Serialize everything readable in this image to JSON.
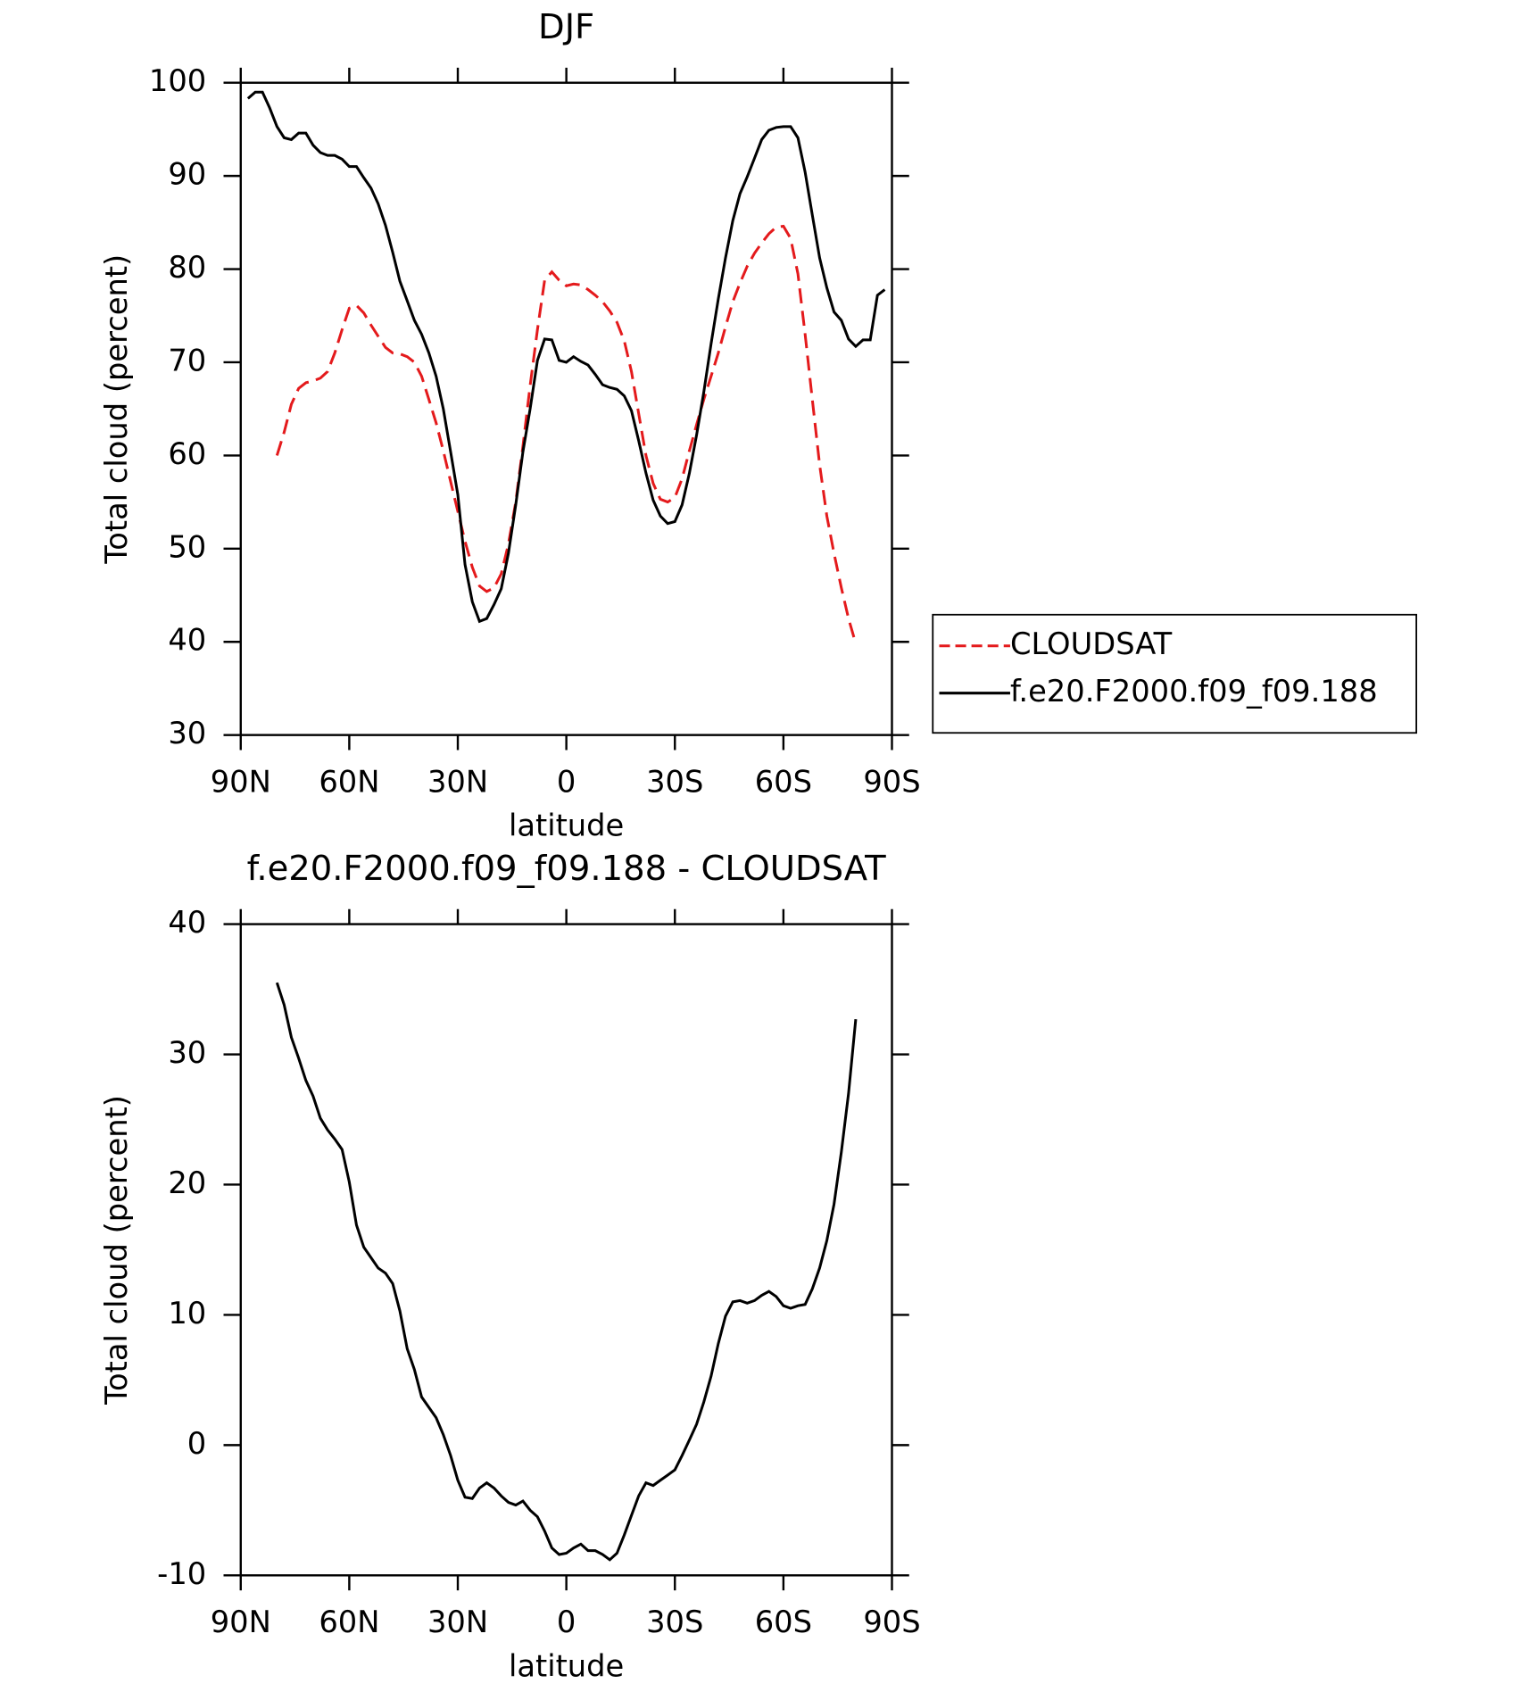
{
  "chart_data": [
    {
      "type": "line",
      "title": "DJF",
      "xlabel": "latitude",
      "ylabel": "Total cloud (percent)",
      "xlim": [
        90,
        -90
      ],
      "ylim": [
        30,
        100
      ],
      "xticks": [
        {
          "value": 90,
          "label": "90N"
        },
        {
          "value": 60,
          "label": "60N"
        },
        {
          "value": 30,
          "label": "30N"
        },
        0,
        {
          "value": -30,
          "label": "30S"
        },
        {
          "value": -60,
          "label": "60S"
        },
        {
          "value": -90,
          "label": "90S"
        }
      ],
      "yticks": [
        30,
        40,
        50,
        60,
        70,
        80,
        90,
        100
      ],
      "legend": "right",
      "series": [
        {
          "name": "CLOUDSAT",
          "color": "#e41a1c",
          "dashed": true,
          "x": [
            80,
            78,
            76,
            74,
            72,
            70,
            68,
            66,
            64,
            62,
            60,
            58,
            56,
            54,
            52,
            50,
            48,
            46,
            44,
            42,
            40,
            38,
            36,
            34,
            32,
            30,
            28,
            26,
            24,
            22,
            20,
            18,
            16,
            14,
            12,
            10,
            8,
            6,
            4,
            2,
            0,
            -2,
            -4,
            -6,
            -8,
            -10,
            -12,
            -14,
            -16,
            -18,
            -20,
            -22,
            -24,
            -26,
            -28,
            -30,
            -32,
            -34,
            -36,
            -38,
            -40,
            -42,
            -44,
            -46,
            -48,
            -50,
            -52,
            -54,
            -56,
            -58,
            -60,
            -62,
            -64,
            -66,
            -68,
            -70,
            -72,
            -74,
            -76,
            -78,
            -80
          ],
          "values": [
            60,
            62.5,
            65.5,
            67.2,
            67.8,
            68,
            68.3,
            69,
            71,
            73.5,
            75.8,
            76.1,
            75.3,
            74,
            72.8,
            71.6,
            71,
            70.9,
            70.6,
            70,
            68.5,
            66,
            63.5,
            60.5,
            57.2,
            54,
            50.8,
            48,
            46,
            45.4,
            45.8,
            47.3,
            50.5,
            55,
            61,
            67.5,
            73.5,
            78.8,
            79.7,
            78.8,
            78.2,
            78.4,
            78.3,
            77.8,
            77.2,
            76.5,
            75.5,
            74.3,
            72.3,
            69,
            64.5,
            60,
            57,
            55.3,
            55,
            55.5,
            57.5,
            60.5,
            63.3,
            66,
            68.5,
            71,
            73.8,
            76.5,
            78.5,
            80.3,
            81.7,
            82.8,
            83.8,
            84.5,
            84.6,
            83.3,
            79.5,
            73,
            66,
            59,
            53.5,
            49.5,
            45.8,
            42.5,
            39.8
          ]
        },
        {
          "name": "f.e20.F2000.f09_f09.188",
          "color": "#000000",
          "dashed": false,
          "x": [
            88,
            86,
            84,
            82,
            80,
            78,
            76,
            74,
            72,
            70,
            68,
            66,
            64,
            62,
            60,
            58,
            56,
            54,
            52,
            50,
            48,
            46,
            44,
            42,
            40,
            38,
            36,
            34,
            32,
            30,
            28,
            26,
            24,
            22,
            20,
            18,
            16,
            14,
            12,
            10,
            8,
            6,
            4,
            2,
            0,
            -2,
            -4,
            -6,
            -8,
            -10,
            -12,
            -14,
            -16,
            -18,
            -20,
            -22,
            -24,
            -26,
            -28,
            -30,
            -32,
            -34,
            -36,
            -38,
            -40,
            -42,
            -44,
            -46,
            -48,
            -50,
            -52,
            -54,
            -56,
            -58,
            -60,
            -62,
            -64,
            -66,
            -68,
            -70,
            -72,
            -74,
            -76,
            -78,
            -80,
            -82,
            -84,
            -86,
            -88
          ],
          "values": [
            98.3,
            99,
            99,
            97.3,
            95.3,
            94.1,
            93.9,
            94.6,
            94.6,
            93.3,
            92.5,
            92.2,
            92.2,
            91.8,
            91,
            91,
            89.8,
            88.7,
            87,
            84.7,
            81.8,
            78.7,
            76.6,
            74.5,
            73,
            71,
            68.5,
            65,
            60.4,
            55.8,
            48.3,
            44.3,
            42.2,
            42.5,
            44,
            45.7,
            49.5,
            54.7,
            60.4,
            65,
            70.2,
            72.5,
            72.4,
            70.2,
            70,
            70.6,
            70.1,
            69.7,
            68.7,
            67.6,
            67.3,
            67.1,
            66.4,
            64.8,
            61.6,
            58.1,
            55.2,
            53.5,
            52.7,
            52.9,
            54.7,
            58.1,
            62.2,
            66.8,
            72,
            76.8,
            81.2,
            85.2,
            88.1,
            89.9,
            91.9,
            93.9,
            94.9,
            95.2,
            95.3,
            95.3,
            94.1,
            90.4,
            85.8,
            81.2,
            78,
            75.4,
            74.5,
            72.5,
            71.7,
            72.4,
            72.4,
            77.2,
            77.8
          ]
        }
      ]
    },
    {
      "type": "line",
      "title": "f.e20.F2000.f09_f09.188 - CLOUDSAT",
      "xlabel": "latitude",
      "ylabel": "Total cloud (percent)",
      "xlim": [
        90,
        -90
      ],
      "ylim": [
        -10,
        40
      ],
      "xticks": [
        {
          "value": 90,
          "label": "90N"
        },
        {
          "value": 60,
          "label": "60N"
        },
        {
          "value": 30,
          "label": "30N"
        },
        0,
        {
          "value": -30,
          "label": "30S"
        },
        {
          "value": -60,
          "label": "60S"
        },
        {
          "value": -90,
          "label": "90S"
        }
      ],
      "yticks": [
        -10,
        0,
        10,
        20,
        30,
        40
      ],
      "series": [
        {
          "color": "#000000",
          "dashed": false,
          "x": [
            80,
            78,
            76,
            74,
            72,
            70,
            68,
            66,
            64,
            62,
            60,
            58,
            56,
            54,
            52,
            50,
            48,
            46,
            44,
            42,
            40,
            38,
            36,
            34,
            32,
            30,
            28,
            26,
            24,
            22,
            20,
            18,
            16,
            14,
            12,
            10,
            8,
            6,
            4,
            2,
            0,
            -2,
            -4,
            -6,
            -8,
            -10,
            -12,
            -14,
            -16,
            -18,
            -20,
            -22,
            -24,
            -26,
            -28,
            -30,
            -32,
            -34,
            -36,
            -38,
            -40,
            -42,
            -44,
            -46,
            -48,
            -50,
            -52,
            -54,
            -56,
            -58,
            -60,
            -62,
            -64,
            -66,
            -68,
            -70,
            -72,
            -74,
            -76,
            -78,
            -80
          ],
          "values": [
            35.5,
            33.8,
            31.3,
            29.7,
            28,
            26.8,
            25.1,
            24.2,
            23.5,
            22.7,
            20.2,
            16.9,
            15.2,
            14.4,
            13.6,
            13.2,
            12.4,
            10.3,
            7.4,
            5.8,
            3.7,
            2.9,
            2.1,
            0.8,
            -0.8,
            -2.7,
            -4,
            -4.1,
            -3.3,
            -2.9,
            -3.3,
            -3.9,
            -4.4,
            -4.6,
            -4.3,
            -5,
            -5.5,
            -6.6,
            -7.9,
            -8.4,
            -8.3,
            -7.9,
            -7.6,
            -8.1,
            -8.1,
            -8.4,
            -8.8,
            -8.3,
            -6.9,
            -5.4,
            -3.9,
            -2.9,
            -3.1,
            -2.7,
            -2.3,
            -1.9,
            -0.8,
            0.4,
            1.6,
            3.3,
            5.3,
            7.8,
            9.9,
            11,
            11.1,
            10.9,
            11.1,
            11.5,
            11.8,
            11.4,
            10.7,
            10.5,
            10.7,
            10.8,
            12,
            13.6,
            15.7,
            18.5,
            22.5,
            27,
            32.7
          ]
        }
      ]
    }
  ]
}
